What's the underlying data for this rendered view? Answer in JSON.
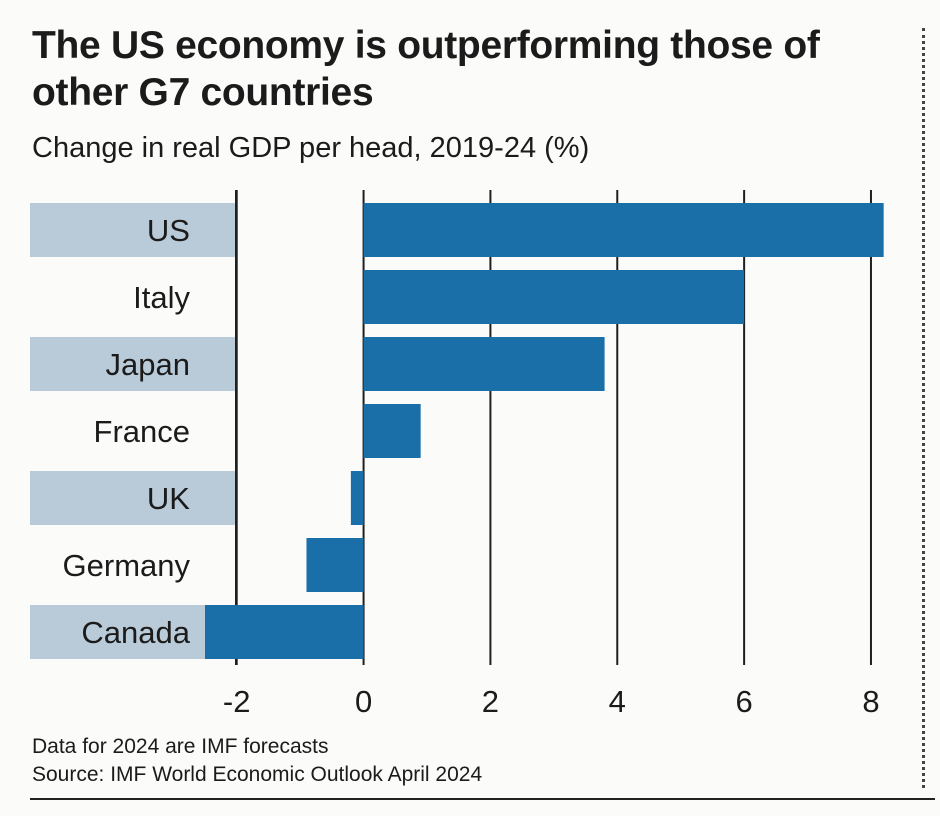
{
  "chart_data": {
    "type": "bar",
    "orientation": "horizontal",
    "title": "The US economy is outperforming those of other G7 countries",
    "subtitle": "Change in real GDP per head, 2019-24 (%)",
    "categories": [
      "US",
      "Italy",
      "Japan",
      "France",
      "UK",
      "Germany",
      "Canada"
    ],
    "values": [
      8.2,
      6.0,
      3.8,
      0.9,
      -0.2,
      -0.9,
      -2.5
    ],
    "xlim": [
      -2.5,
      8.3
    ],
    "xticks": [
      -2,
      0,
      2,
      4,
      6,
      8
    ],
    "xlabel": "",
    "ylabel": "",
    "grid": true,
    "bar_color": "#1a6fa8",
    "label_band_color": "#b9cad8",
    "notes": [
      "Data for 2024 are IMF forecasts",
      "Source: IMF World Economic Outlook April 2024"
    ]
  }
}
